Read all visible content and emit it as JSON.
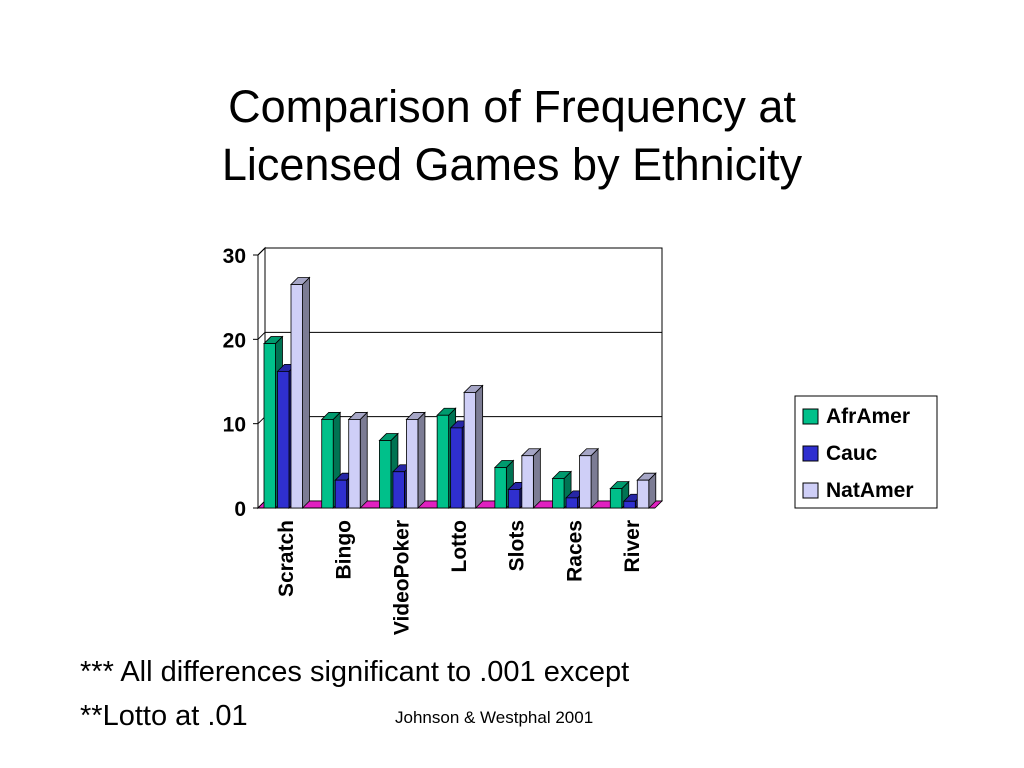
{
  "slide": {
    "title_line1": "Comparison of Frequency at",
    "title_line2": "Licensed Games by Ethnicity",
    "footnote_line1": "*** All differences significant to .001 except",
    "footnote_line2": "**Lotto at .01",
    "citation": "Johnson & Westphal 2001"
  },
  "chart_data": {
    "type": "bar",
    "title": "",
    "xlabel": "",
    "ylabel": "",
    "categories": [
      "Scratch",
      "Bingo",
      "VideoPoker",
      "Lotto",
      "Slots",
      "Races",
      "River"
    ],
    "series": [
      {
        "name": "AfrAmer",
        "color": "#00c08a",
        "values": [
          19.5,
          10.5,
          8,
          11,
          4.8,
          3.5,
          2.3
        ]
      },
      {
        "name": "Cauc",
        "color": "#2f2fcf",
        "values": [
          16.2,
          3.3,
          4.3,
          9.5,
          2.2,
          1.2,
          0.8
        ]
      },
      {
        "name": "NatAmer",
        "color": "#cfcff7",
        "values": [
          26.5,
          10.5,
          10.5,
          13.7,
          6.2,
          6.2,
          3.3
        ]
      }
    ],
    "ylim": [
      0,
      30
    ],
    "yticks": [
      0,
      10,
      20,
      30
    ],
    "grid": true,
    "three_d": true,
    "floor_color": "#e020c0",
    "legend_position": "right",
    "x_tick_rotation": "vertical"
  }
}
